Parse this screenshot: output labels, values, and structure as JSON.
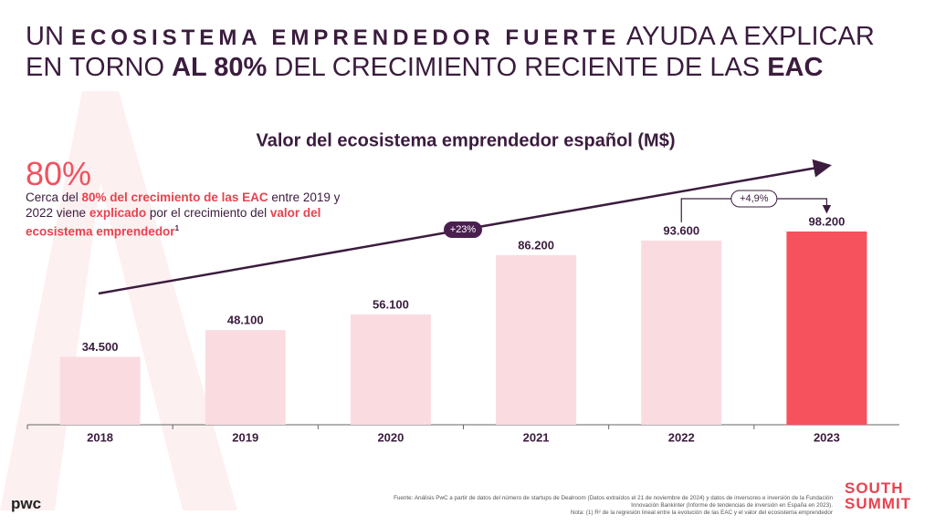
{
  "header": {
    "line1": [
      "UN ",
      "ECOSISTEMA EMPRENDEDOR FUERTE",
      " AYUDA A EXPLICAR"
    ],
    "line2": [
      "EN TORNO ",
      "AL 80%",
      " DEL CRECIMIENTO RECIENTE DE LAS ",
      "EAC"
    ]
  },
  "callout": {
    "figure": "80%",
    "text": [
      "Cerca del ",
      "80% del crecimiento de las EAC",
      " entre 2019 y 2022 viene ",
      "explicado",
      " por el crecimiento del ",
      "valor del ecosistema emprendedor",
      "1"
    ]
  },
  "chart_data": {
    "type": "bar",
    "title": "Valor del ecosistema emprendedor español (M$)",
    "categories": [
      "2018",
      "2019",
      "2020",
      "2021",
      "2022",
      "2023"
    ],
    "values": [
      34500,
      48100,
      56100,
      86200,
      93600,
      98200
    ],
    "value_labels": [
      "34.500",
      "48.100",
      "56.100",
      "86.200",
      "93.600",
      "98.200"
    ],
    "colors": [
      "#fadce0",
      "#fadce0",
      "#fadce0",
      "#fadce0",
      "#fadce0",
      "#f5525e"
    ],
    "annotations": [
      "+23%",
      "+4,9%"
    ]
  },
  "footer": {
    "source": [
      "Fuente: Análisis PwC a partir de datos del número de startups de Dealroom (Datos extraídos el 21 de noviembre de 2024) y datos de inversores e inversión de la Fundación",
      "Innovación Bankinter (Informe de tendencias de inversión en España en 2023).",
      "Nota: (1) R² de la regresión lineal entre la evolución de las EAC y el valor del ecosistema emprendedor"
    ],
    "logo_left": "pwc",
    "logo_right": [
      "SOUTH",
      "SUMMIT"
    ]
  }
}
